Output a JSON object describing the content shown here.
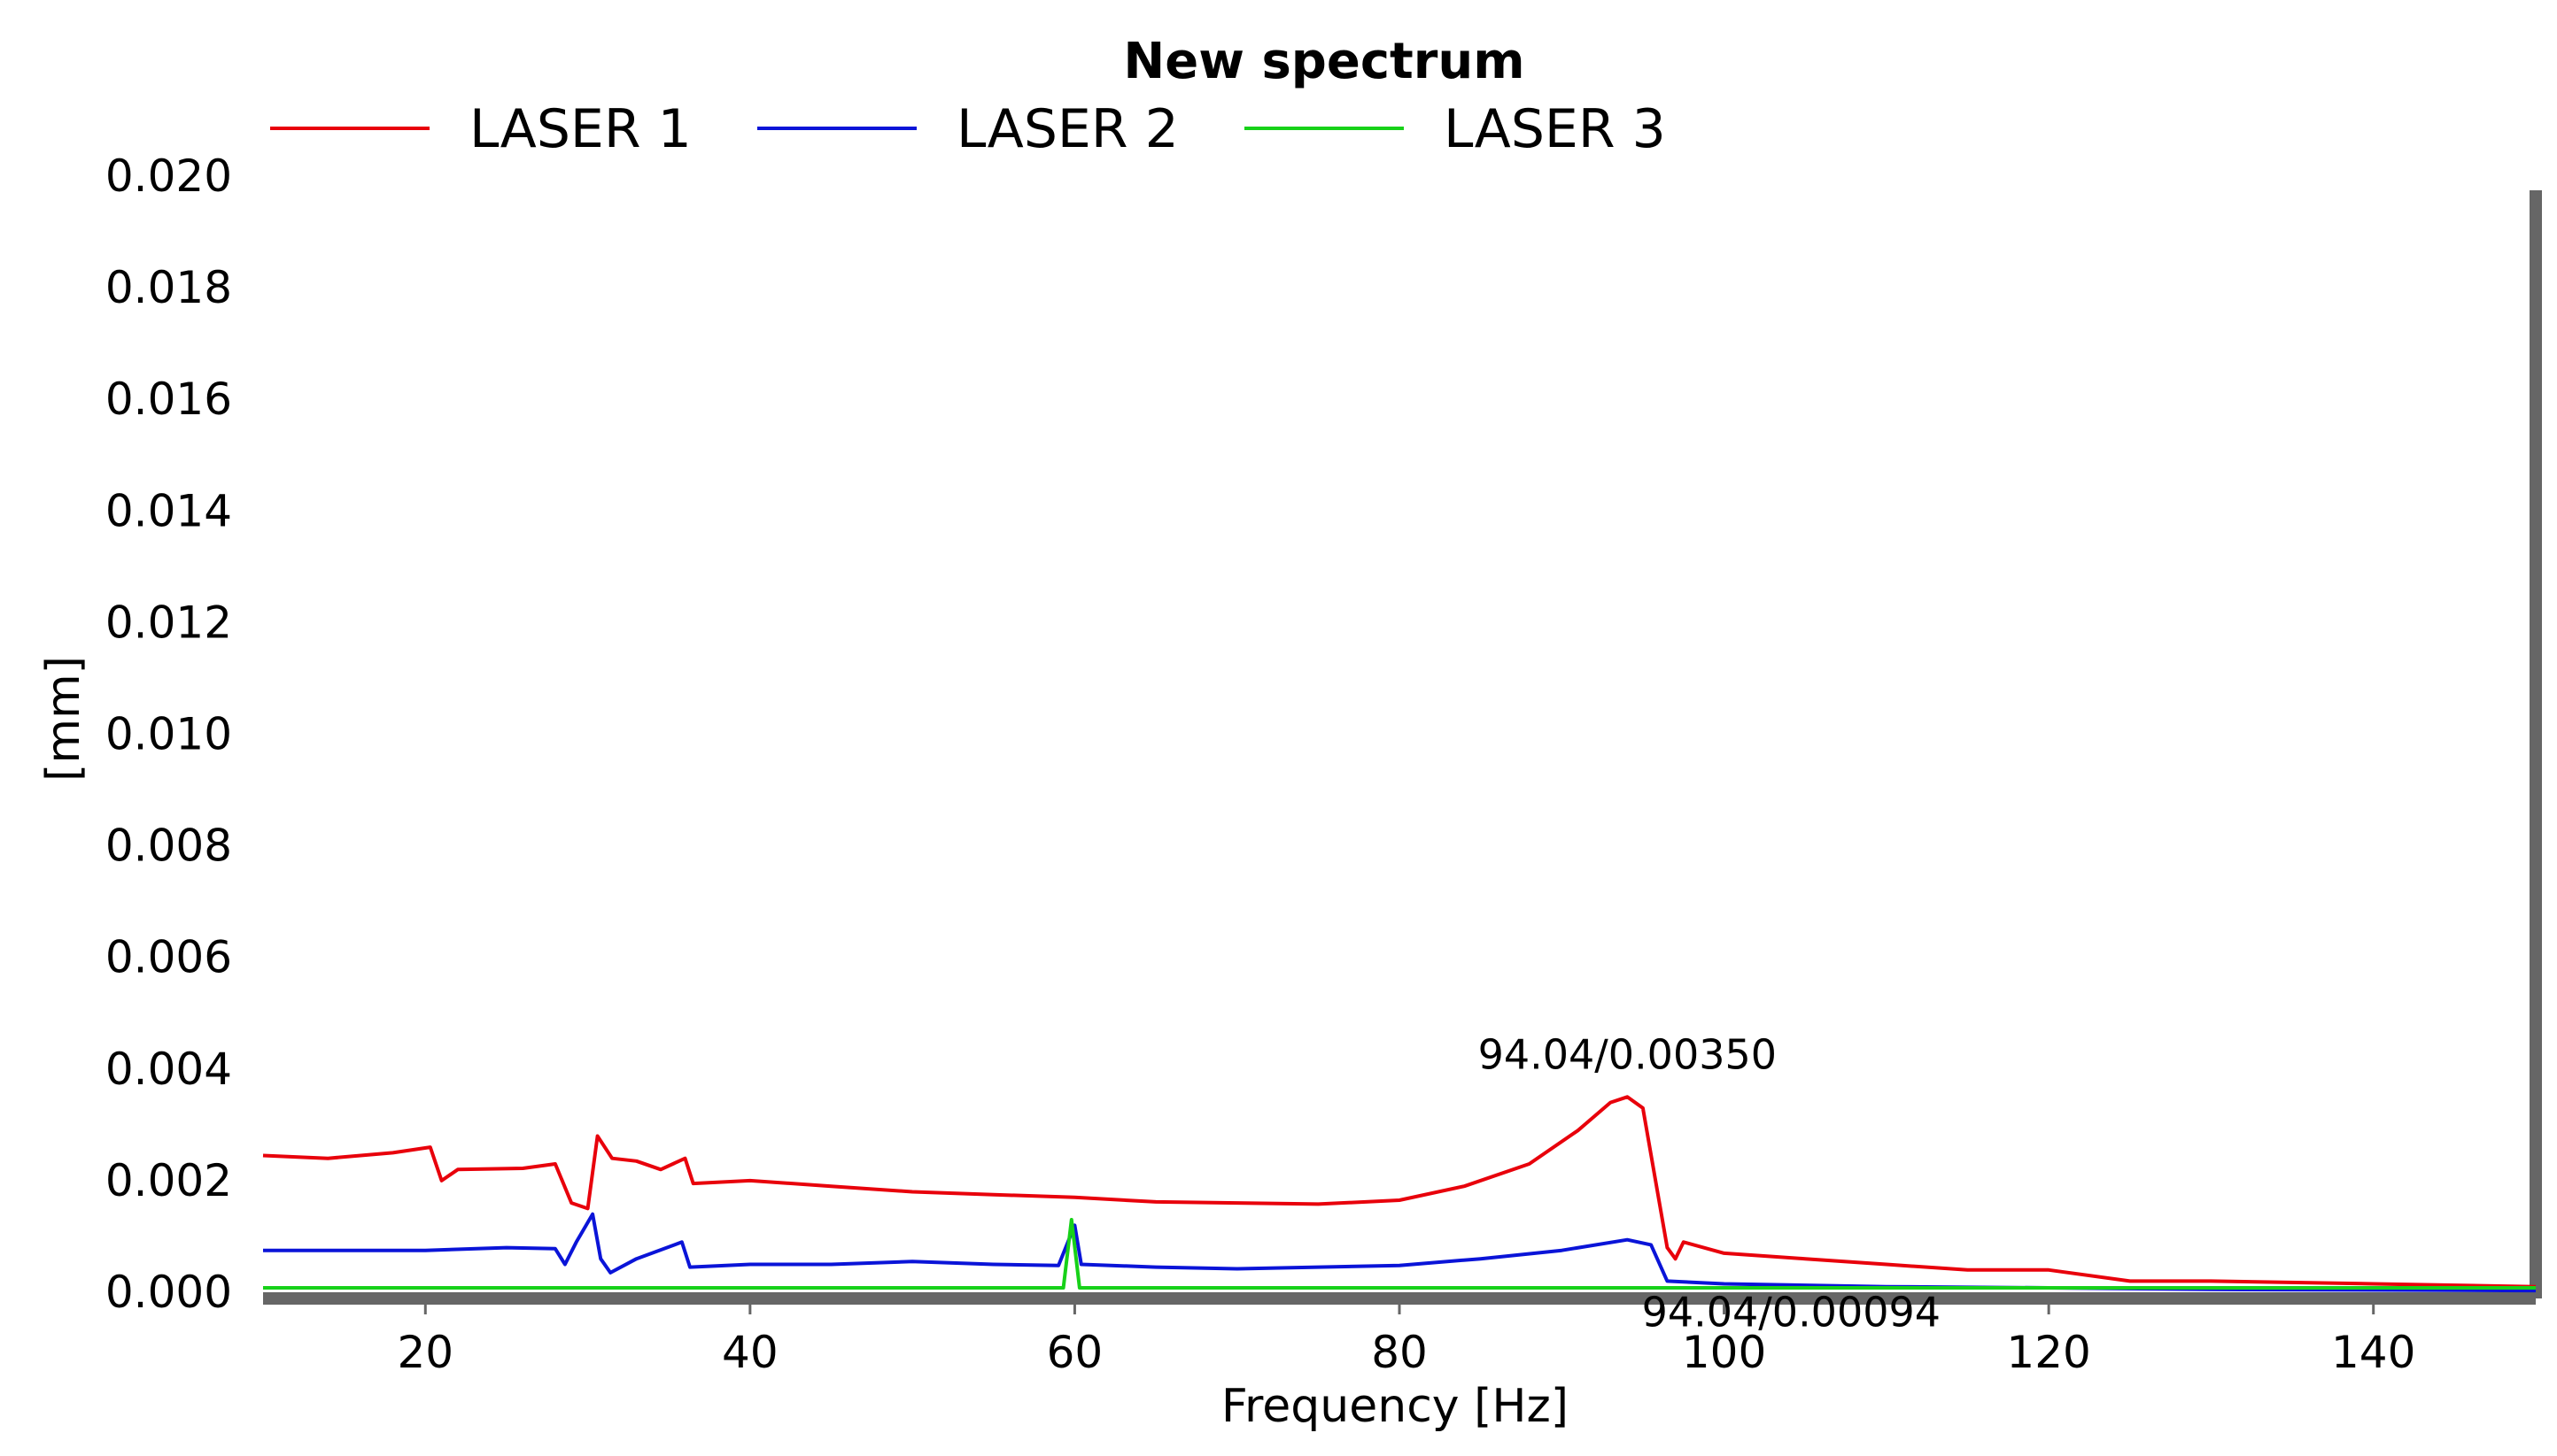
{
  "chart_data": {
    "type": "line",
    "title": "New spectrum",
    "xlabel": "Frequency [Hz]",
    "ylabel": "[mm]",
    "xlim": [
      10,
      150
    ],
    "ylim": [
      0,
      0.02
    ],
    "x_ticks": [
      20,
      40,
      60,
      80,
      100,
      120,
      140
    ],
    "x_tick_labels": [
      "20",
      "40",
      "60",
      "80",
      "100",
      "120",
      "140"
    ],
    "y_ticks": [
      0,
      0.002,
      0.004,
      0.006,
      0.008,
      0.01,
      0.012,
      0.014,
      0.016,
      0.018,
      0.02
    ],
    "y_tick_labels": [
      "0.000",
      "0.002",
      "0.004",
      "0.006",
      "0.008",
      "0.010",
      "0.012",
      "0.014",
      "0.016",
      "0.018",
      "0.020"
    ],
    "legend_position": "top",
    "grid": false,
    "series": [
      {
        "name": "LASER 1",
        "color": "#e8000b",
        "points": [
          [
            10,
            0.00245
          ],
          [
            14,
            0.0024
          ],
          [
            18,
            0.0025
          ],
          [
            20.3,
            0.0026
          ],
          [
            21,
            0.002
          ],
          [
            22,
            0.0022
          ],
          [
            26,
            0.00222
          ],
          [
            28,
            0.0023
          ],
          [
            29,
            0.0016
          ],
          [
            30,
            0.0015
          ],
          [
            30.6,
            0.0028
          ],
          [
            31.5,
            0.0024
          ],
          [
            33,
            0.00235
          ],
          [
            34.5,
            0.0022
          ],
          [
            36,
            0.0024
          ],
          [
            36.5,
            0.00195
          ],
          [
            40,
            0.002
          ],
          [
            45,
            0.0019
          ],
          [
            50,
            0.0018
          ],
          [
            55,
            0.00175
          ],
          [
            60,
            0.0017
          ],
          [
            65,
            0.00162
          ],
          [
            70,
            0.0016
          ],
          [
            75,
            0.00158
          ],
          [
            80,
            0.00165
          ],
          [
            84,
            0.0019
          ],
          [
            88,
            0.0023
          ],
          [
            91,
            0.0029
          ],
          [
            93,
            0.0034
          ],
          [
            94.04,
            0.0035
          ],
          [
            95,
            0.0033
          ],
          [
            96.5,
            0.0008
          ],
          [
            97,
            0.0006
          ],
          [
            97.5,
            0.0009
          ],
          [
            100,
            0.0007
          ],
          [
            105,
            0.0006
          ],
          [
            110,
            0.0005
          ],
          [
            115,
            0.0004
          ],
          [
            120,
            0.0004
          ],
          [
            125,
            0.0002
          ],
          [
            130,
            0.0002
          ],
          [
            140,
            0.00015
          ],
          [
            150,
            0.0001
          ]
        ]
      },
      {
        "name": "LASER 2",
        "color": "#0a14d8",
        "points": [
          [
            10,
            0.00075
          ],
          [
            20,
            0.00075
          ],
          [
            25,
            0.0008
          ],
          [
            28,
            0.00078
          ],
          [
            28.6,
            0.0005
          ],
          [
            29.3,
            0.0009
          ],
          [
            30.3,
            0.0014
          ],
          [
            30.8,
            0.0006
          ],
          [
            31.4,
            0.00035
          ],
          [
            33,
            0.0006
          ],
          [
            35.8,
            0.0009
          ],
          [
            36.3,
            0.00045
          ],
          [
            40,
            0.0005
          ],
          [
            45,
            0.0005
          ],
          [
            50,
            0.00055
          ],
          [
            55,
            0.0005
          ],
          [
            59,
            0.00048
          ],
          [
            60,
            0.0012
          ],
          [
            60.4,
            0.0005
          ],
          [
            65,
            0.00045
          ],
          [
            70,
            0.00042
          ],
          [
            75,
            0.00045
          ],
          [
            80,
            0.00048
          ],
          [
            85,
            0.0006
          ],
          [
            90,
            0.00075
          ],
          [
            94.04,
            0.00094
          ],
          [
            95.5,
            0.00085
          ],
          [
            96.5,
            0.0002
          ],
          [
            100,
            0.00015
          ],
          [
            110,
            0.0001
          ],
          [
            120,
            8e-05
          ],
          [
            130,
            5e-05
          ],
          [
            150,
            3e-05
          ]
        ]
      },
      {
        "name": "LASER 3",
        "color": "#17d119",
        "points": [
          [
            10,
            8e-05
          ],
          [
            59.3,
            8e-05
          ],
          [
            59.8,
            0.0013
          ],
          [
            60.3,
            8e-05
          ],
          [
            150,
            8e-05
          ]
        ]
      }
    ],
    "annotations": [
      {
        "text": "94.04/0.00350",
        "x": 94.04,
        "y": 0.0035
      },
      {
        "text": "94.04/0.00094",
        "x": 94.04,
        "y": 0.00094
      }
    ]
  }
}
